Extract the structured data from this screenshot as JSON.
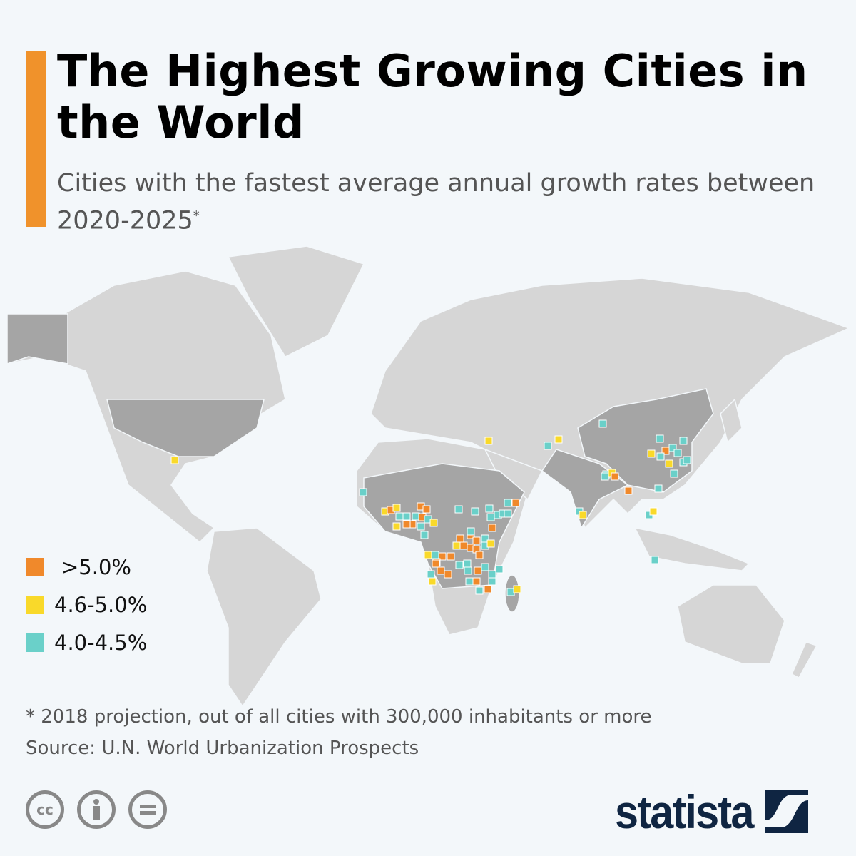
{
  "header": {
    "title": "The Highest Growing Cities in the World",
    "subtitle": "Cities with the fastest average annual growth rates between 2020-2025",
    "subtitle_mark": "*"
  },
  "legend": [
    {
      "label": ">5.0%",
      "color": "#f0892b"
    },
    {
      "label": "4.6-5.0%",
      "color": "#f9d92a"
    },
    {
      "label": "4.0-4.5%",
      "color": "#6ad0c9"
    }
  ],
  "map": {
    "land_color": "#d6d6d6",
    "highlight_color": "#a5a5a5",
    "border_color": "#f3f7fa"
  },
  "footer": {
    "note": "* 2018 projection, out of all cities with 300,000 inhabitants or more",
    "source": "Source: U.N. World Urbanization Prospects"
  },
  "license_icons": [
    "cc-icon",
    "attribution-icon",
    "no-derivatives-icon"
  ],
  "brand": {
    "name": "statista",
    "color": "#0f2542"
  }
}
